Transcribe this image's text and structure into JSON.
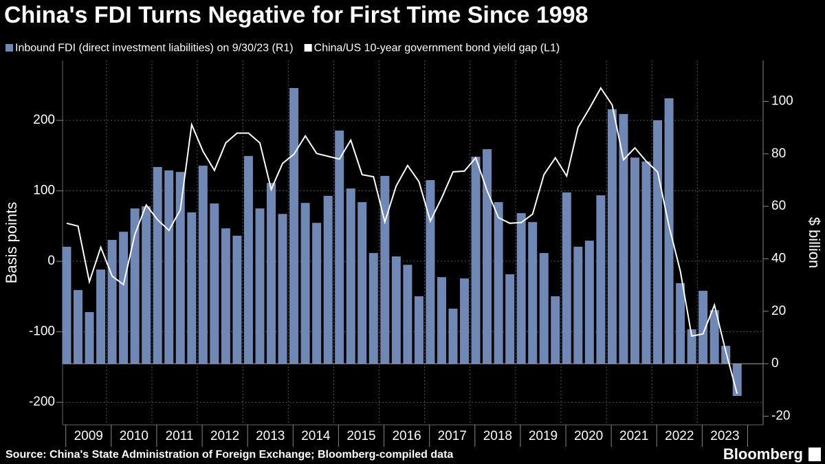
{
  "chart_data": {
    "type": "bar_line",
    "title": "China's FDI Turns Negative for First Time Since 1998",
    "source": "Source: China's State Administration of Foreign Exchange; Bloomberg-compiled data",
    "brand": "Bloomberg",
    "y_label": "Basis points",
    "y2_label": "$ billion",
    "years": [
      "2009",
      "2010",
      "2011",
      "2012",
      "2013",
      "2014",
      "2015",
      "2016",
      "2017",
      "2018",
      "2019",
      "2020",
      "2021",
      "2022",
      "2023"
    ],
    "ylim": [
      -232,
      285
    ],
    "yticks": [
      -200,
      -100,
      0,
      100,
      200
    ],
    "y2lim": [
      -23.3,
      115.6
    ],
    "y2ticks": [
      -20,
      0,
      20,
      40,
      60,
      80,
      100
    ],
    "grid": true,
    "series": [
      {
        "name": "Inbound FDI (direct investment liabilities) on 9/30/23 (R1)",
        "color": "#7088b5",
        "axis": "y2",
        "kind": "bar",
        "values": [
          44.6,
          28.1,
          19.7,
          35.9,
          47.2,
          50.3,
          59.2,
          60.0,
          75.0,
          73.7,
          73.1,
          57.7,
          75.5,
          61.1,
          51.6,
          48.8,
          79.2,
          59.2,
          68.9,
          57.1,
          105.1,
          61.3,
          53.7,
          64.0,
          88.9,
          66.8,
          61.6,
          42.2,
          71.6,
          40.9,
          37.7,
          25.7,
          70.0,
          33.0,
          21.0,
          32.5,
          78.9,
          81.8,
          61.6,
          34.1,
          57.4,
          54.0,
          42.2,
          25.7,
          65.3,
          44.6,
          46.9,
          64.2,
          97.0,
          95.2,
          78.6,
          77.1,
          92.8,
          101.2,
          30.7,
          13.1,
          27.8,
          20.4,
          6.8,
          -12.3
        ]
      },
      {
        "name": "China/US 10-year government bond yield gap (L1)",
        "color": "#ffffff",
        "axis": "y",
        "kind": "line",
        "values": [
          54,
          50,
          -29,
          20,
          -21,
          -33,
          38,
          80,
          59,
          44,
          73,
          194,
          156,
          129,
          168,
          182,
          182,
          168,
          102,
          139,
          152,
          178,
          153,
          149,
          145,
          172,
          123,
          120,
          56,
          107,
          136,
          113,
          57,
          90,
          127,
          128,
          147,
          100,
          62,
          54,
          55,
          67,
          123,
          147,
          121,
          190,
          217,
          246,
          222,
          144,
          161,
          142,
          127,
          50,
          -14,
          -106,
          -103,
          -62,
          -128,
          -188
        ]
      }
    ]
  }
}
